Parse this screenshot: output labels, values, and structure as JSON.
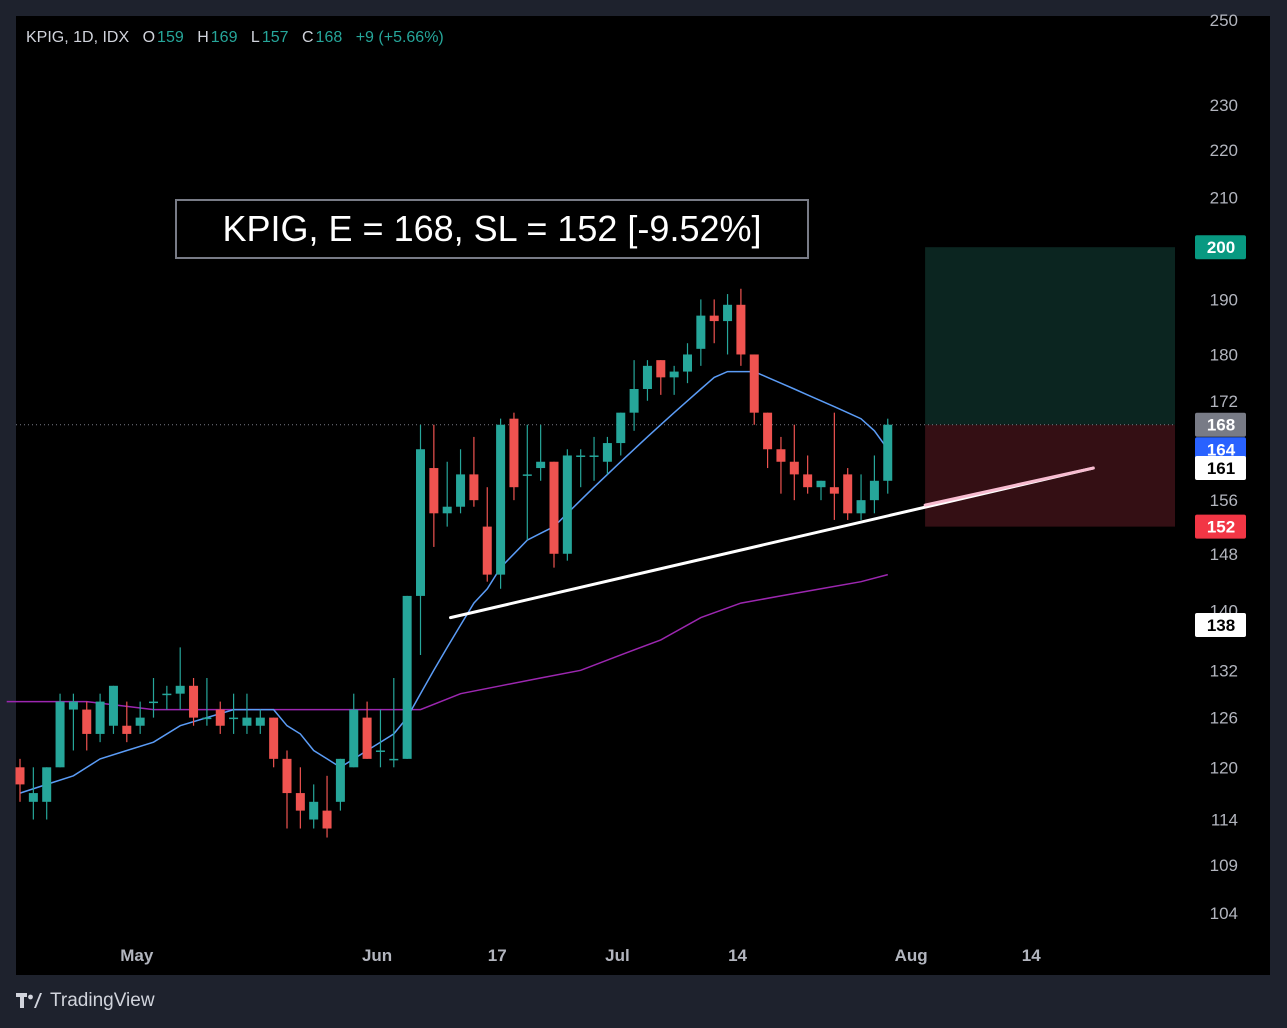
{
  "legend": {
    "symbol": "KPIG, 1D, IDX",
    "open_label": "O",
    "open": "159",
    "high_label": "H",
    "high": "169",
    "low_label": "L",
    "low": "157",
    "close_label": "C",
    "close": "168",
    "change": "+9 (+5.66%)"
  },
  "banner": {
    "text": "KPIG, E = 168, SL = 152 [-9.52%]"
  },
  "footer": {
    "brand": "TradingView"
  },
  "colors": {
    "up": "#26a69a",
    "down": "#ef5350",
    "ma_fast": "#5b9cf6",
    "ma_slow": "#9c27b0",
    "target_zone": "#0d2b26",
    "stop_zone": "#3a1116"
  },
  "chart_data": {
    "type": "candlestick",
    "y_scale": "log",
    "ylim": [
      101,
      252
    ],
    "y_ticks": [
      104,
      109,
      114,
      120,
      126,
      132,
      140,
      148,
      156,
      172,
      180,
      190,
      210,
      220,
      230,
      250
    ],
    "x_labels": [
      {
        "label": "May",
        "index": 8
      },
      {
        "label": "Jun",
        "index": 26
      },
      {
        "label": "17",
        "index": 35
      },
      {
        "label": "Jul",
        "index": 44
      },
      {
        "label": "14",
        "index": 53
      },
      {
        "label": "Aug",
        "index": 66
      },
      {
        "label": "14",
        "index": 75
      }
    ],
    "price_labels": [
      {
        "value": "200",
        "color": "#089981",
        "text_color": "#ffffff"
      },
      {
        "value": "168",
        "color": "#787b86",
        "text_color": "#ffffff"
      },
      {
        "value": "164",
        "color": "#2962ff",
        "text_color": "#ffffff"
      },
      {
        "value": "161",
        "color": "#ffffff",
        "text_color": "#000000"
      },
      {
        "value": "152",
        "color": "#f23645",
        "text_color": "#ffffff"
      },
      {
        "value": "138",
        "color": "#ffffff",
        "text_color": "#000000"
      }
    ],
    "candles": [
      [
        120,
        121,
        116,
        118
      ],
      [
        116,
        120,
        114,
        117
      ],
      [
        116,
        120,
        114,
        120
      ],
      [
        120,
        129,
        120,
        128
      ],
      [
        127,
        129,
        122,
        128
      ],
      [
        127,
        128,
        122,
        124
      ],
      [
        124,
        129,
        123,
        128
      ],
      [
        125,
        130,
        124,
        130
      ],
      [
        125,
        128,
        123,
        124
      ],
      [
        125,
        128,
        124,
        126
      ],
      [
        128,
        131,
        126,
        128
      ],
      [
        129,
        130,
        127,
        129
      ],
      [
        129,
        135,
        127,
        130
      ],
      [
        130,
        131,
        125,
        126
      ],
      [
        126,
        131,
        125,
        126
      ],
      [
        127,
        128,
        124,
        125
      ],
      [
        126,
        129,
        124,
        126
      ],
      [
        125,
        129,
        124,
        126
      ],
      [
        125,
        127,
        124,
        126
      ],
      [
        126,
        126,
        120,
        121
      ],
      [
        121,
        122,
        113,
        117
      ],
      [
        117,
        120,
        113,
        115
      ],
      [
        114,
        118,
        113,
        116
      ],
      [
        115,
        119,
        112,
        113
      ],
      [
        116,
        121,
        115,
        121
      ],
      [
        120,
        129,
        120,
        127
      ],
      [
        126,
        128,
        121,
        121
      ],
      [
        122,
        127,
        120,
        122
      ],
      [
        121,
        131,
        120,
        121
      ],
      [
        121,
        142,
        121,
        142
      ],
      [
        142,
        168,
        134,
        164
      ],
      [
        161,
        168,
        149,
        154
      ],
      [
        154,
        162,
        152,
        155
      ],
      [
        155,
        164,
        154,
        160
      ],
      [
        160,
        166,
        155,
        156
      ],
      [
        152,
        158,
        144,
        145
      ],
      [
        145,
        169,
        143,
        168
      ],
      [
        169,
        170,
        156,
        158
      ],
      [
        160,
        168,
        150,
        160
      ],
      [
        161,
        168,
        159,
        162
      ],
      [
        162,
        162,
        146,
        148
      ],
      [
        148,
        164,
        147,
        163
      ],
      [
        163,
        164,
        158,
        163
      ],
      [
        163,
        166,
        159,
        163
      ],
      [
        162,
        166,
        160,
        165
      ],
      [
        165,
        170,
        163,
        170
      ],
      [
        170,
        179,
        167,
        174
      ],
      [
        174,
        179,
        172,
        178
      ],
      [
        179,
        179,
        173,
        176
      ],
      [
        176,
        178,
        173,
        177
      ],
      [
        177,
        182,
        175,
        180
      ],
      [
        181,
        190,
        178,
        187
      ],
      [
        187,
        190,
        182,
        186
      ],
      [
        186,
        191,
        180,
        189
      ],
      [
        189,
        192,
        178,
        180
      ],
      [
        180,
        180,
        168,
        170
      ],
      [
        170,
        170,
        161,
        164
      ],
      [
        164,
        166,
        157,
        162
      ],
      [
        162,
        168,
        156,
        160
      ],
      [
        160,
        163,
        157,
        158
      ],
      [
        158,
        159,
        156,
        159
      ],
      [
        158,
        170,
        153,
        157
      ],
      [
        160,
        161,
        153,
        154
      ],
      [
        154,
        160,
        153,
        156
      ],
      [
        156,
        163,
        154,
        159
      ],
      [
        159,
        169,
        157,
        168
      ]
    ],
    "ma_fast": [
      [
        0,
        117
      ],
      [
        2,
        118
      ],
      [
        4,
        119
      ],
      [
        6,
        121
      ],
      [
        8,
        122
      ],
      [
        10,
        123
      ],
      [
        12,
        125
      ],
      [
        14,
        126
      ],
      [
        16,
        127
      ],
      [
        18,
        127
      ],
      [
        19,
        127
      ],
      [
        20,
        125
      ],
      [
        21,
        124
      ],
      [
        22,
        122
      ],
      [
        23,
        121
      ],
      [
        24,
        120
      ],
      [
        25,
        121
      ],
      [
        26,
        122
      ],
      [
        27,
        123
      ],
      [
        28,
        124
      ],
      [
        29,
        126
      ],
      [
        30,
        129
      ],
      [
        31,
        132
      ],
      [
        32,
        135
      ],
      [
        33,
        138
      ],
      [
        34,
        141
      ],
      [
        35,
        143
      ],
      [
        36,
        146
      ],
      [
        37,
        148
      ],
      [
        38,
        150
      ],
      [
        39,
        151
      ],
      [
        40,
        152
      ],
      [
        41,
        154
      ],
      [
        42,
        156
      ],
      [
        43,
        158
      ],
      [
        44,
        160
      ],
      [
        45,
        162
      ],
      [
        46,
        164
      ],
      [
        47,
        166
      ],
      [
        48,
        168
      ],
      [
        49,
        170
      ],
      [
        50,
        172
      ],
      [
        51,
        174
      ],
      [
        52,
        176
      ],
      [
        53,
        177
      ],
      [
        54,
        177
      ],
      [
        55,
        177
      ],
      [
        56,
        176
      ],
      [
        57,
        175
      ],
      [
        58,
        174
      ],
      [
        59,
        173
      ],
      [
        60,
        172
      ],
      [
        61,
        171
      ],
      [
        62,
        170
      ],
      [
        63,
        169
      ],
      [
        64,
        167
      ],
      [
        65,
        164
      ]
    ],
    "ma_slow": [
      [
        -1,
        128
      ],
      [
        5,
        128
      ],
      [
        10,
        127
      ],
      [
        15,
        127
      ],
      [
        20,
        127
      ],
      [
        25,
        127
      ],
      [
        28,
        127
      ],
      [
        30,
        127
      ],
      [
        33,
        129
      ],
      [
        36,
        130
      ],
      [
        39,
        131
      ],
      [
        42,
        132
      ],
      [
        45,
        134
      ],
      [
        48,
        136
      ],
      [
        51,
        139
      ],
      [
        54,
        141
      ],
      [
        57,
        142
      ],
      [
        60,
        143
      ],
      [
        63,
        144
      ],
      [
        65,
        145
      ]
    ],
    "trendline": {
      "start": [
        30,
        139
      ],
      "end": [
        75,
        161
      ]
    },
    "position": {
      "entry": 168,
      "stop": 152,
      "target": 200,
      "start_index": 66,
      "end_index": 84
    }
  }
}
